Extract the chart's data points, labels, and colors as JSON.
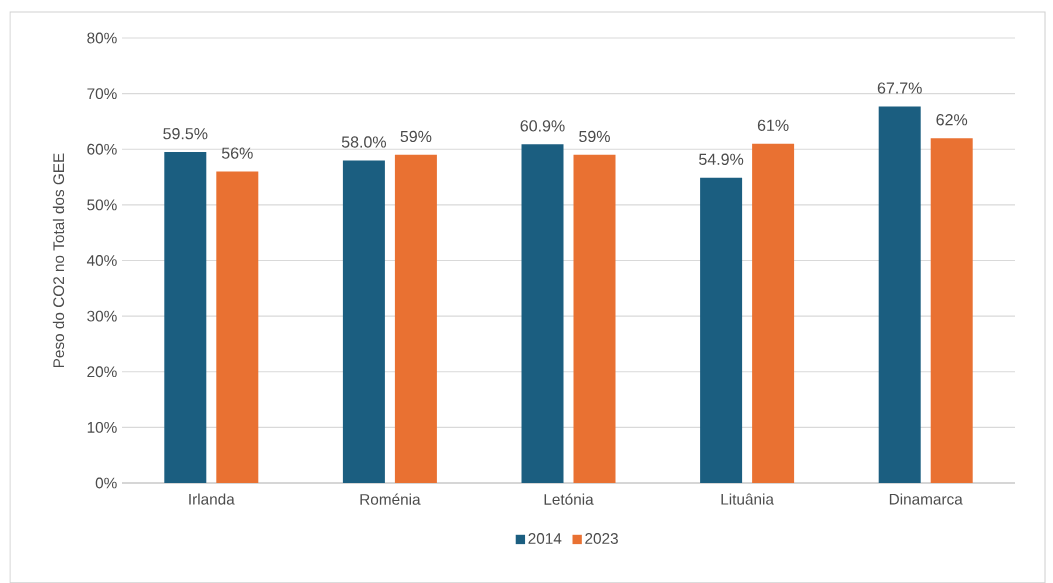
{
  "chart_data": {
    "type": "bar",
    "ylabel": "Peso do CO2 no Total dos GEE",
    "categories": [
      "Irlanda",
      "Roménia",
      "Letónia",
      "Lituânia",
      "Dinamarca"
    ],
    "series": [
      {
        "name": "2014",
        "color": "#1b5e80",
        "values": [
          59.5,
          58.0,
          60.9,
          54.9,
          67.7
        ],
        "value_labels": [
          "59.5%",
          "58.0%",
          "60.9%",
          "54.9%",
          "67.7%"
        ]
      },
      {
        "name": "2023",
        "color": "#e97132",
        "values": [
          56,
          59,
          59,
          61,
          62
        ],
        "value_labels": [
          "56%",
          "59%",
          "59%",
          "61%",
          "62%"
        ]
      }
    ],
    "ylim": [
      0,
      80
    ],
    "yticks": [
      {
        "value": 0,
        "label": "0%"
      },
      {
        "value": 10,
        "label": "10%"
      },
      {
        "value": 20,
        "label": "20%"
      },
      {
        "value": 30,
        "label": "30%"
      },
      {
        "value": 40,
        "label": "40%"
      },
      {
        "value": 50,
        "label": "50%"
      },
      {
        "value": 60,
        "label": "60%"
      },
      {
        "value": 70,
        "label": "70%"
      },
      {
        "value": 80,
        "label": "80%"
      }
    ],
    "grid": "y",
    "legend": "bottom"
  }
}
